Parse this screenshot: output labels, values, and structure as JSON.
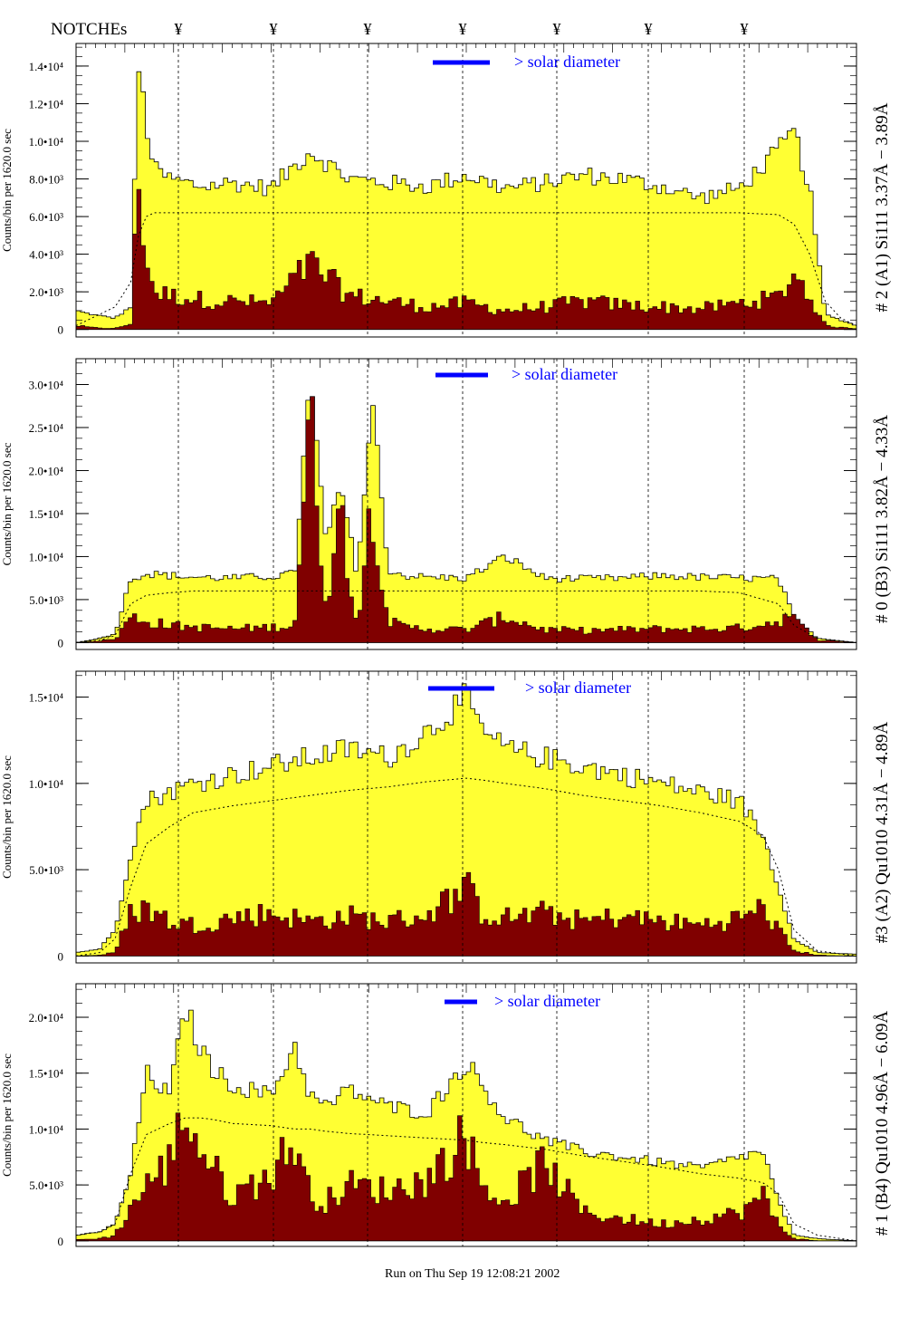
{
  "header": {
    "notches_label": "NOTCHEs",
    "notch_symbol": "¥",
    "notch_positions": [
      197,
      302,
      406,
      511,
      615,
      716,
      822
    ]
  },
  "footer": {
    "run_text": "Run on Thu Sep 19 12:08:21 2002"
  },
  "colors": {
    "fill_total": "#ffff33",
    "fill_partial": "#800000",
    "annotation_blue": "#0000ff",
    "frame": "#000000"
  },
  "chart_data": [
    {
      "type": "area",
      "right_label": "# 2 (A1) Si111  3.37Å − 3.89Å",
      "ylabel": "Counts/bin per   1620.0 sec",
      "yticks": [
        "0",
        "2.0•10³",
        "4.0•10³",
        "6.0•10³",
        "8.0•10³",
        "1.0•10⁴",
        "1.2•10⁴",
        "1.4•10⁴"
      ],
      "ytick_values": [
        0,
        2000,
        4000,
        6000,
        8000,
        10000,
        12000,
        14000
      ],
      "ylim": [
        -400,
        15200
      ],
      "annotation": "> solar diameter",
      "x": [
        0,
        2,
        5,
        7,
        8,
        9,
        10,
        12,
        14,
        16,
        18,
        20,
        25,
        30,
        35,
        40,
        45,
        50,
        55,
        60,
        65,
        70,
        75,
        80,
        85,
        90,
        92,
        94,
        96,
        98,
        100
      ],
      "series": [
        {
          "values": [
            1000,
            800,
            600,
            1200,
            14000,
            11000,
            8500,
            8000,
            7800,
            7600,
            7700,
            7800,
            7500,
            9500,
            8000,
            7800,
            7600,
            8200,
            7500,
            7800,
            8200,
            8000,
            7600,
            7000,
            7500,
            9500,
            10500,
            7500,
            800,
            500,
            200
          ]
        },
        {
          "values": [
            200,
            100,
            50,
            300,
            8000,
            4000,
            2000,
            1800,
            1700,
            1600,
            1500,
            1500,
            1400,
            3500,
            1800,
            1500,
            1200,
            1400,
            1000,
            1200,
            1500,
            1300,
            1200,
            1100,
            1400,
            1700,
            3000,
            1800,
            200,
            100,
            50
          ]
        },
        {
          "values": [
            200,
            600,
            1200,
            2500,
            5000,
            6000,
            6200,
            6200,
            6200,
            6200,
            6200,
            6200,
            6200,
            6200,
            6200,
            6200,
            6200,
            6200,
            6200,
            6200,
            6200,
            6200,
            6200,
            6200,
            6200,
            6100,
            5600,
            4000,
            1500,
            600,
            200
          ]
        }
      ]
    },
    {
      "type": "area",
      "right_label": "# 0 (B3) Si111  3.82Å − 4.33Å",
      "ylabel": "Counts/bin per   1620.0 sec",
      "yticks": [
        "0",
        "5.0•10³",
        "1.0•10⁴",
        "1.5•10⁴",
        "2.0•10⁴",
        "2.5•10⁴",
        "3.0•10⁴"
      ],
      "ytick_values": [
        0,
        5000,
        10000,
        15000,
        20000,
        25000,
        30000
      ],
      "ylim": [
        -800,
        33000
      ],
      "annotation": "> solar diameter",
      "x": [
        0,
        3,
        5,
        7,
        9,
        12,
        15,
        20,
        25,
        28,
        30,
        32,
        34,
        36,
        38,
        40,
        42,
        45,
        50,
        55,
        60,
        65,
        70,
        75,
        80,
        85,
        90,
        92,
        95,
        100
      ],
      "series": [
        {
          "values": [
            0,
            500,
            1000,
            7500,
            8000,
            7800,
            7600,
            7500,
            7700,
            8000,
            30500,
            12000,
            18000,
            8000,
            28000,
            8500,
            7800,
            7600,
            7500,
            10000,
            7500,
            7400,
            7500,
            7800,
            7600,
            7500,
            7400,
            3000,
            500,
            0
          ]
        },
        {
          "values": [
            0,
            200,
            400,
            3000,
            2500,
            2000,
            1800,
            1600,
            1800,
            2000,
            27000,
            5000,
            15000,
            2000,
            17000,
            2500,
            1800,
            1600,
            1500,
            3000,
            1500,
            1400,
            1500,
            1600,
            1600,
            1700,
            2500,
            3500,
            300,
            0
          ]
        },
        {
          "values": [
            0,
            300,
            800,
            4500,
            5500,
            5800,
            6000,
            6000,
            6000,
            6000,
            6000,
            6000,
            6000,
            6000,
            6000,
            6000,
            6000,
            6000,
            6000,
            6000,
            6000,
            6000,
            6000,
            6000,
            6000,
            5800,
            4500,
            2000,
            500,
            0
          ]
        }
      ]
    },
    {
      "type": "area",
      "right_label": "#3 (A2) Qu1010  4.31Å − 4.89Å",
      "ylabel": "Counts/bin per   1620.0 sec",
      "yticks": [
        "0",
        "5.0•10³",
        "1.0•10⁴",
        "1.5•10⁴"
      ],
      "ytick_values": [
        0,
        5000,
        10000,
        15000
      ],
      "ylim": [
        -400,
        16500
      ],
      "annotation": "> solar diameter",
      "x": [
        0,
        3,
        5,
        7,
        9,
        12,
        15,
        20,
        25,
        30,
        35,
        40,
        45,
        50,
        52,
        55,
        60,
        65,
        70,
        75,
        80,
        85,
        88,
        90,
        92,
        95,
        100
      ],
      "series": [
        {
          "values": [
            200,
            400,
            1500,
            6000,
            9000,
            9500,
            10000,
            10500,
            11000,
            11500,
            12000,
            11500,
            13000,
            15000,
            13000,
            12000,
            11500,
            11000,
            10500,
            10000,
            9500,
            9000,
            7000,
            4000,
            1000,
            200,
            100
          ]
        },
        {
          "values": [
            0,
            50,
            200,
            2500,
            2800,
            2000,
            1800,
            2200,
            2500,
            2000,
            2300,
            2000,
            2400,
            4000,
            2500,
            2200,
            2500,
            2000,
            2300,
            2000,
            1800,
            2200,
            2800,
            1500,
            300,
            50,
            0
          ]
        },
        {
          "values": [
            0,
            200,
            1000,
            4000,
            6500,
            7500,
            8300,
            8700,
            9000,
            9300,
            9600,
            9800,
            10100,
            10300,
            10200,
            10000,
            9700,
            9300,
            9000,
            8700,
            8300,
            7800,
            7000,
            5000,
            1500,
            300,
            0
          ]
        }
      ]
    },
    {
      "type": "area",
      "right_label": "# 1 (B4) Qu1010 4.96Å − 6.09Å",
      "ylabel": "Counts/bin per   1620.0 sec",
      "yticks": [
        "0",
        "5.0•10³",
        "1.0•10⁴",
        "1.5•10⁴",
        "2.0•10⁴"
      ],
      "ytick_values": [
        0,
        5000,
        10000,
        15000,
        20000
      ],
      "ylim": [
        -500,
        23000
      ],
      "annotation": "> solar diameter",
      "x": [
        0,
        3,
        5,
        7,
        9,
        12,
        14,
        16,
        18,
        20,
        25,
        28,
        30,
        32,
        35,
        40,
        45,
        50,
        52,
        55,
        60,
        65,
        70,
        75,
        80,
        85,
        88,
        90,
        92,
        95,
        100
      ],
      "series": [
        {
          "values": [
            500,
            800,
            1500,
            6000,
            15000,
            13000,
            21000,
            17000,
            15000,
            14000,
            13000,
            17500,
            13000,
            12000,
            13500,
            12000,
            11500,
            16000,
            14000,
            11000,
            9000,
            8000,
            7500,
            7000,
            6500,
            7500,
            8000,
            3500,
            500,
            200,
            0
          ]
        },
        {
          "values": [
            100,
            200,
            500,
            3000,
            5000,
            7000,
            12000,
            8000,
            6000,
            4000,
            6000,
            9000,
            4000,
            3500,
            5000,
            4500,
            5500,
            9500,
            5000,
            3500,
            7000,
            2500,
            2000,
            1500,
            2000,
            2500,
            4000,
            1500,
            200,
            0,
            0
          ]
        },
        {
          "values": [
            500,
            800,
            1500,
            6000,
            9500,
            10500,
            11000,
            11000,
            10800,
            10500,
            10300,
            10000,
            10000,
            9800,
            9600,
            9400,
            9200,
            9000,
            8800,
            8600,
            8200,
            7600,
            7100,
            6600,
            6000,
            5600,
            5200,
            4200,
            1500,
            500,
            0
          ]
        }
      ]
    }
  ]
}
